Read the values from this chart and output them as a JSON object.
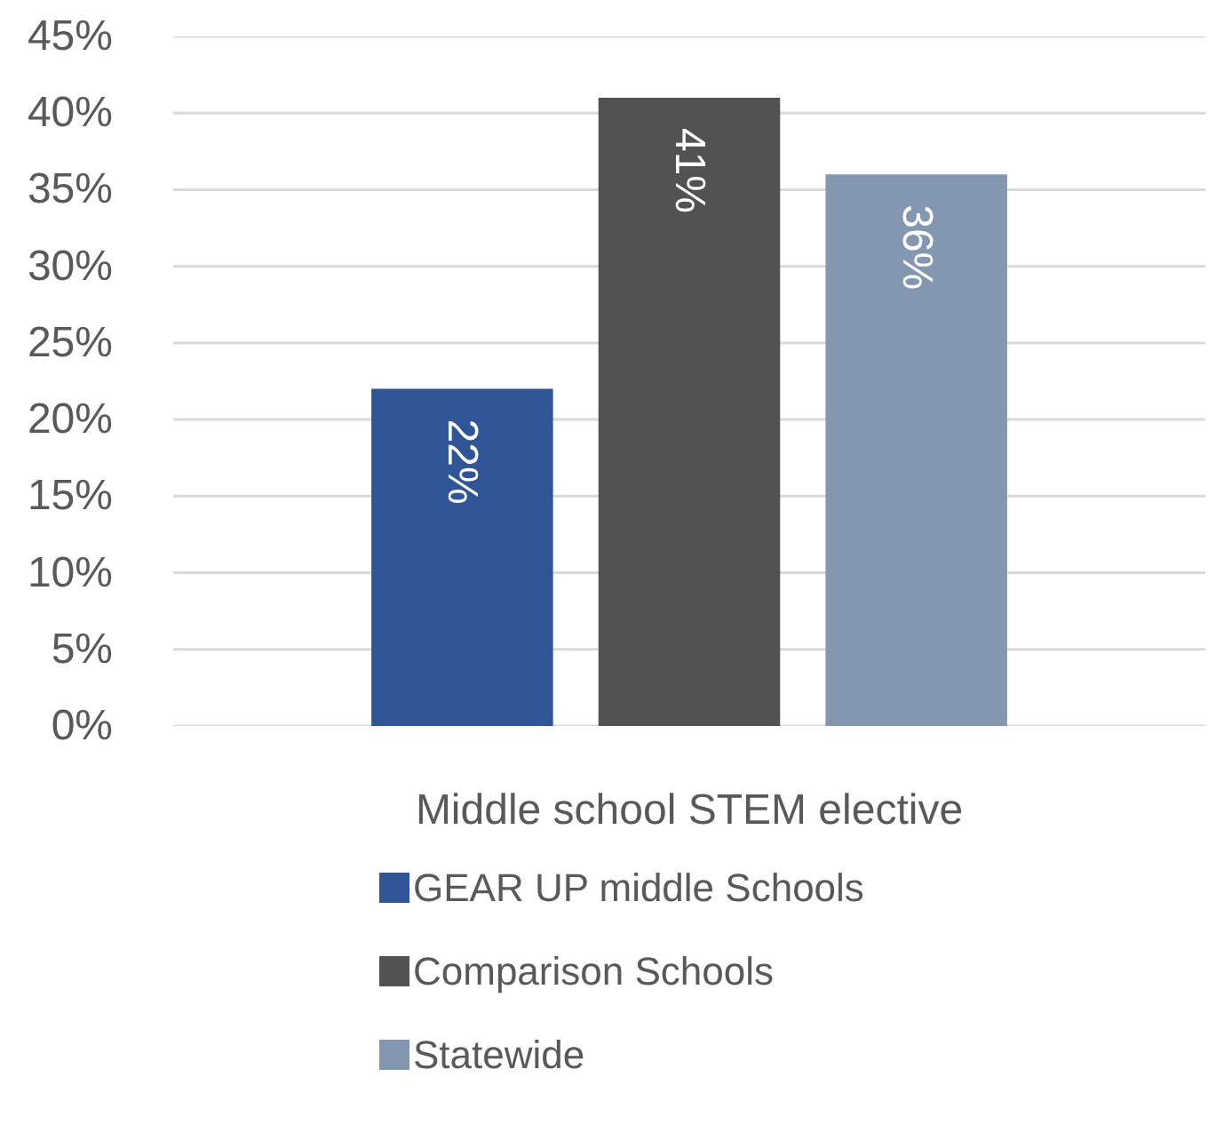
{
  "chart_data": {
    "type": "bar",
    "categories": [
      "Middle school STEM elective"
    ],
    "series": [
      {
        "name": "GEAR UP middle Schools",
        "color": "#2f5597",
        "values": [
          22
        ],
        "value_labels": [
          "22%"
        ]
      },
      {
        "name": "Comparison Schools",
        "color": "#525252",
        "values": [
          41
        ],
        "value_labels": [
          "41%"
        ]
      },
      {
        "name": "Statewide",
        "color": "#8497b0",
        "values": [
          36
        ],
        "value_labels": [
          "36%"
        ]
      }
    ],
    "ylim": [
      0,
      45
    ],
    "yticks": [
      {
        "value": 0,
        "label": "0%"
      },
      {
        "value": 5,
        "label": "5%"
      },
      {
        "value": 10,
        "label": "10%"
      },
      {
        "value": 15,
        "label": "15%"
      },
      {
        "value": 20,
        "label": "20%"
      },
      {
        "value": 25,
        "label": "25%"
      },
      {
        "value": 30,
        "label": "30%"
      },
      {
        "value": 35,
        "label": "35%"
      },
      {
        "value": 40,
        "label": "40%"
      },
      {
        "value": 45,
        "label": "45%"
      }
    ],
    "grid": "y",
    "legend": "bottom"
  }
}
